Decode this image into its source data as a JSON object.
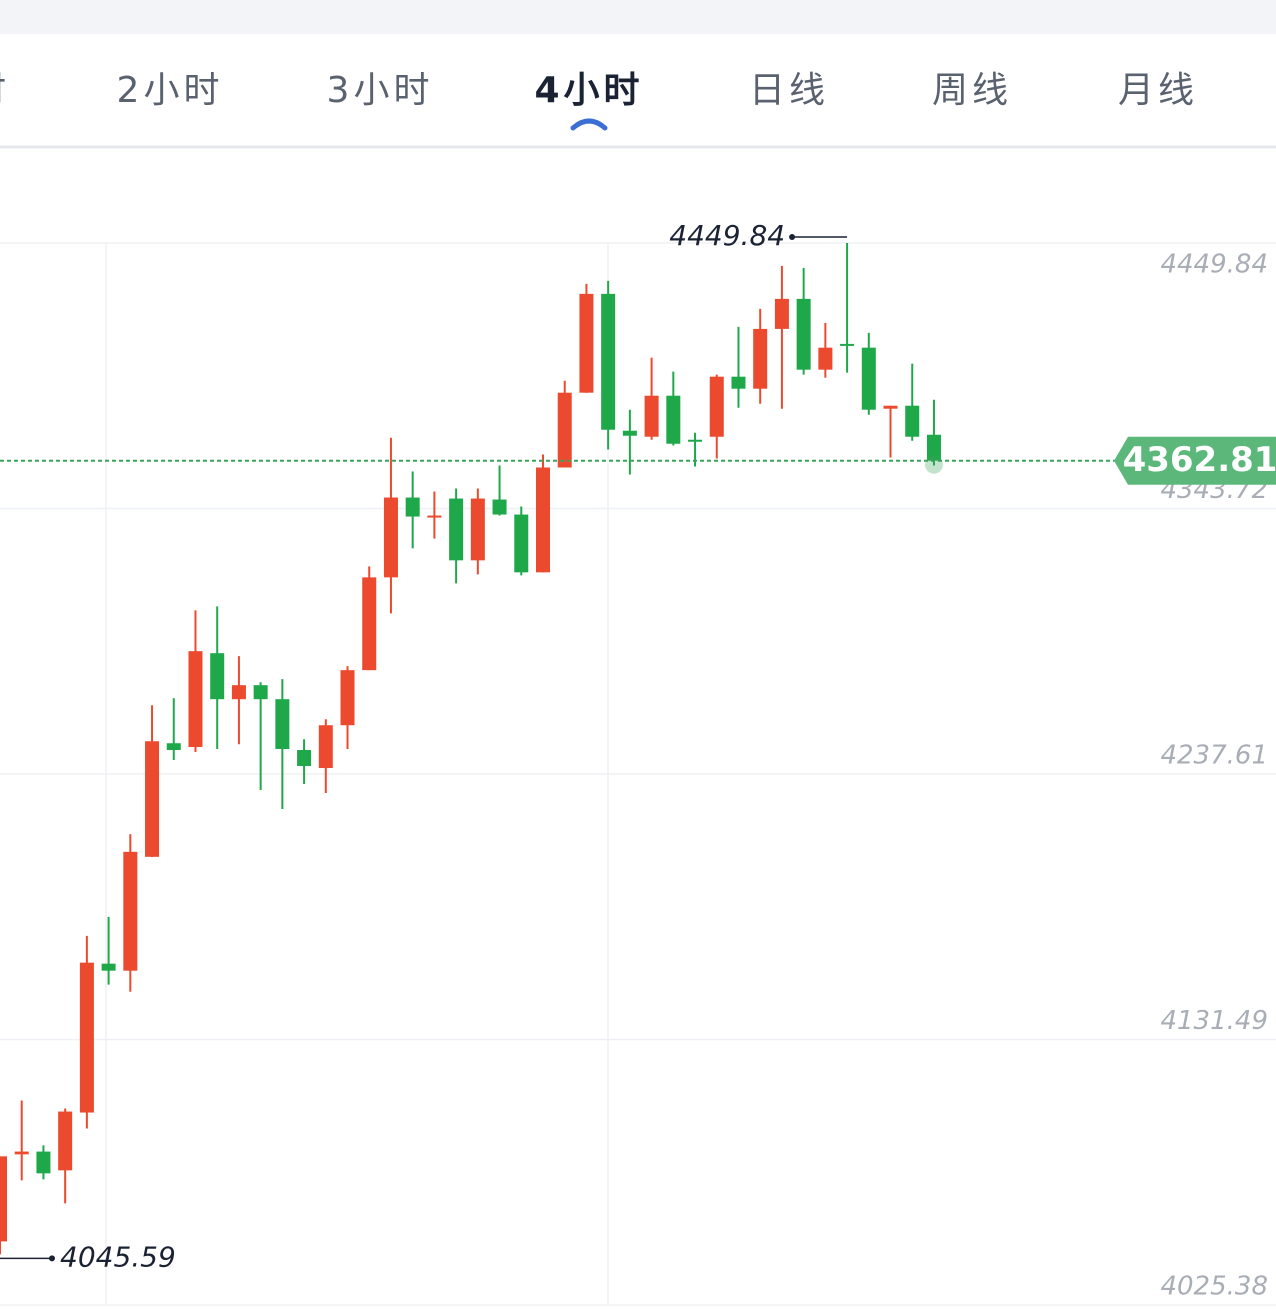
{
  "tabs": [
    "时",
    "2小时",
    "3小时",
    "4小时",
    "日线",
    "周线",
    "月线"
  ],
  "active_tab": 3,
  "chart_data": {
    "type": "candlestick",
    "up_color": "#ec4a2e",
    "down_color": "#1fa84a",
    "ylim": [
      4025.38,
      4487.0
    ],
    "yticks": [
      4449.84,
      4343.72,
      4237.61,
      4131.49,
      4025.38
    ],
    "grid": true,
    "open": [
      4050.8,
      4085.6,
      4086.7,
      4079.2,
      4102.3,
      4161.8,
      4159.0,
      4204.5,
      4249.9,
      4248.4,
      4285.9,
      4267.5,
      4273.1,
      4267.5,
      4247.2,
      4240.0,
      4257.1,
      4279.1,
      4316.2,
      4348.1,
      4340.1,
      4347.7,
      4323.0,
      4347.3,
      4341.3,
      4318.2,
      4360.1,
      4390.0,
      4429.5,
      4374.8,
      4372.4,
      4388.8,
      4371.2,
      4372.4,
      4396.4,
      4391.6,
      4415.5,
      4427.5,
      4399.2,
      4409.5,
      4408.0,
      4383.6,
      4384.8,
      4373.2
    ],
    "high": [
      4084.8,
      4107.1,
      4089.2,
      4103.9,
      4172.9,
      4180.5,
      4213.6,
      4265.1,
      4267.9,
      4303.0,
      4304.6,
      4284.7,
      4274.3,
      4275.5,
      4251.5,
      4259.5,
      4280.7,
      4320.6,
      4372.0,
      4358.5,
      4350.5,
      4351.7,
      4351.7,
      4360.9,
      4344.5,
      4365.3,
      4394.8,
      4433.5,
      4434.7,
      4383.2,
      4404.0,
      4398.4,
      4374.0,
      4397.2,
      4416.3,
      4423.5,
      4440.7,
      4439.9,
      4417.9,
      4449.84,
      4413.9,
      4384.8,
      4401.6,
      4387.2
    ],
    "low": [
      4045.59,
      4075.2,
      4075.6,
      4066.0,
      4095.9,
      4153.4,
      4150.6,
      4204.5,
      4243.2,
      4246.4,
      4247.6,
      4249.5,
      4231.2,
      4223.6,
      4233.6,
      4230.0,
      4247.6,
      4279.1,
      4301.8,
      4327.8,
      4331.7,
      4313.8,
      4317.4,
      4340.9,
      4317.0,
      4318.2,
      4360.1,
      4390.0,
      4367.3,
      4357.3,
      4371.2,
      4368.9,
      4360.5,
      4363.7,
      4384.0,
      4385.6,
      4383.6,
      4397.2,
      4396.0,
      4398.0,
      4381.2,
      4364.1,
      4370.8,
      4360.9
    ],
    "close": [
      4084.8,
      4086.7,
      4078.0,
      4102.7,
      4162.2,
      4159.0,
      4206.5,
      4250.7,
      4247.2,
      4286.7,
      4267.5,
      4273.1,
      4267.5,
      4247.6,
      4240.8,
      4257.1,
      4279.1,
      4316.2,
      4348.1,
      4340.5,
      4340.9,
      4323.0,
      4347.7,
      4341.3,
      4318.2,
      4360.1,
      4390.0,
      4429.5,
      4375.2,
      4372.8,
      4388.8,
      4369.6,
      4370.4,
      4396.4,
      4391.6,
      4415.5,
      4427.5,
      4399.2,
      4408.0,
      4408.8,
      4383.2,
      4384.8,
      4372.4,
      4362.81
    ]
  }
}
